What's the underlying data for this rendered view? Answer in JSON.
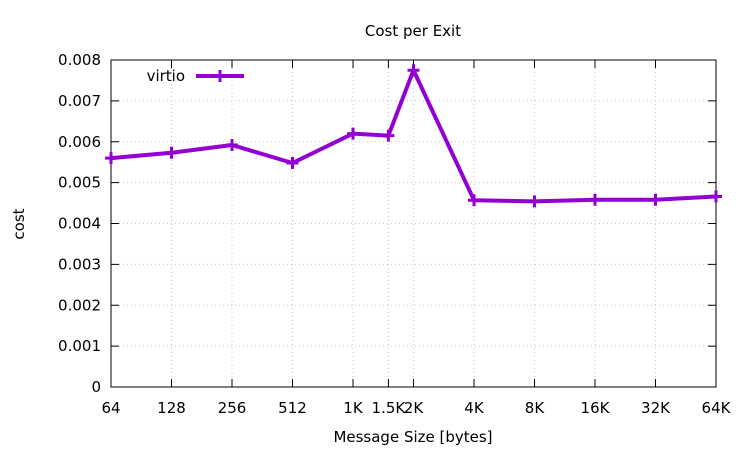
{
  "chart_data": {
    "type": "line",
    "title": "Cost per Exit",
    "xlabel": "Message Size [bytes]",
    "ylabel": "cost",
    "x_scale": "log2",
    "x_tick_labels": [
      "64",
      "128",
      "256",
      "512",
      "1K",
      "1.5K",
      "2K",
      "4K",
      "8K",
      "16K",
      "32K",
      "64K"
    ],
    "x": [
      64,
      128,
      256,
      512,
      1024,
      1536,
      2048,
      4096,
      8192,
      16384,
      32768,
      65536
    ],
    "xlim": [
      64,
      65536
    ],
    "ylim": [
      0,
      0.008
    ],
    "y_ticks": [
      0,
      0.001,
      0.002,
      0.003,
      0.004,
      0.005,
      0.006,
      0.007,
      0.008
    ],
    "y_tick_labels": [
      "0",
      "0.001",
      "0.002",
      "0.003",
      "0.004",
      "0.005",
      "0.006",
      "0.007",
      "0.008"
    ],
    "grid": true,
    "legend_position": "top-left",
    "series": [
      {
        "name": "virtio",
        "color": "#9400d3",
        "marker": "plus",
        "values": [
          0.0056,
          0.00573,
          0.00592,
          0.00548,
          0.0062,
          0.00615,
          0.00775,
          0.00457,
          0.00454,
          0.00458,
          0.00458,
          0.00466
        ]
      }
    ]
  }
}
